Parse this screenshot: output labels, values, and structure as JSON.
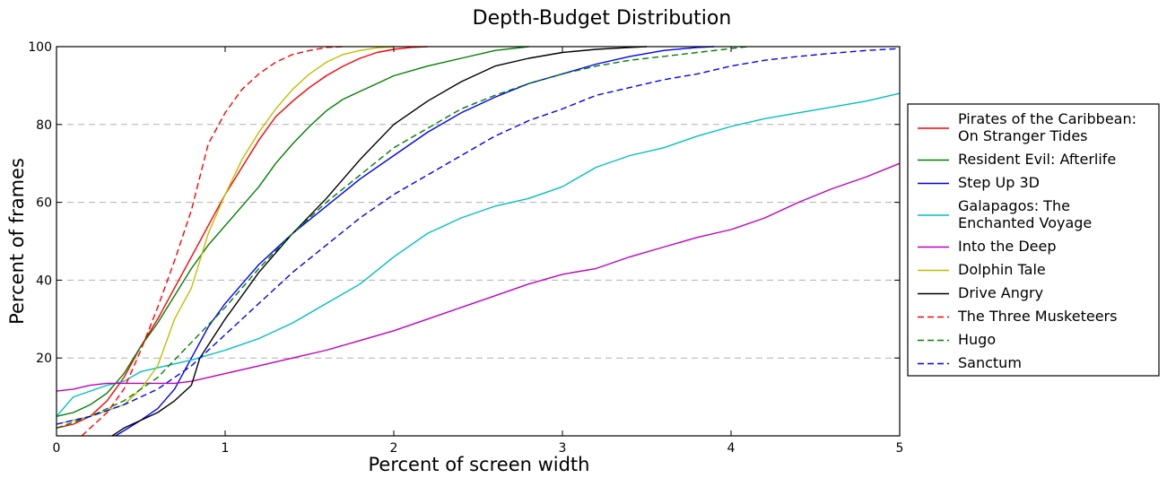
{
  "chart_data": {
    "type": "line",
    "title": "Depth-Budget Distribution",
    "xlabel": "Percent of screen width",
    "ylabel": "Percent of frames",
    "xlim": [
      0,
      5
    ],
    "ylim": [
      0,
      100
    ],
    "xticks": [
      {
        "v": 0,
        "label": "0"
      },
      {
        "v": 1,
        "label": "1"
      },
      {
        "v": 2,
        "label": "2"
      },
      {
        "v": 3,
        "label": "3"
      },
      {
        "v": 4,
        "label": "4"
      },
      {
        "v": 5,
        "label": "5"
      }
    ],
    "yticks": [
      {
        "v": 20,
        "label": "20"
      },
      {
        "v": 40,
        "label": "40"
      },
      {
        "v": 60,
        "label": "60"
      },
      {
        "v": 80,
        "label": "80"
      },
      {
        "v": 100,
        "label": "100"
      }
    ],
    "grid": "horizontal dashed",
    "legend_position": "right, outside plot",
    "series": [
      {
        "name": "Pirates of the Caribbean: On Stranger Tides",
        "legend_lines": [
          "Pirates of the Caribbean:",
          "On Stranger Tides"
        ],
        "color": "#ff0000",
        "dash": "solid",
        "x": [
          0,
          0.1,
          0.2,
          0.3,
          0.4,
          0.5,
          0.6,
          0.7,
          0.8,
          0.9,
          1.0,
          1.1,
          1.2,
          1.3,
          1.4,
          1.5,
          1.6,
          1.7,
          1.8,
          1.9,
          2.0,
          2.1,
          2.2
        ],
        "y": [
          2,
          3,
          5,
          9,
          15,
          23,
          30,
          38,
          46,
          54,
          62,
          69,
          76,
          82,
          86,
          89.5,
          92.5,
          95,
          97,
          98.5,
          99.3,
          99.8,
          100
        ]
      },
      {
        "name": "Resident Evil: Afterlife",
        "legend_lines": [
          "Resident Evil: Afterlife"
        ],
        "color": "#008000",
        "dash": "solid",
        "x": [
          0,
          0.1,
          0.2,
          0.3,
          0.4,
          0.5,
          0.6,
          0.7,
          0.8,
          0.9,
          1.0,
          1.1,
          1.2,
          1.3,
          1.4,
          1.5,
          1.6,
          1.7,
          1.8,
          1.9,
          2.0,
          2.2,
          2.4,
          2.6,
          2.8
        ],
        "y": [
          5,
          6,
          8,
          11,
          16,
          23,
          29,
          36,
          43,
          49,
          54,
          59,
          64,
          70,
          75,
          79.5,
          83.5,
          86.5,
          88.5,
          90.5,
          92.5,
          95,
          97,
          99,
          100
        ]
      },
      {
        "name": "Step Up 3D",
        "legend_lines": [
          "Step Up 3D"
        ],
        "color": "#0000ff",
        "dash": "solid",
        "x": [
          0.35,
          0.5,
          0.6,
          0.7,
          0.8,
          0.9,
          1.0,
          1.1,
          1.2,
          1.3,
          1.4,
          1.6,
          1.8,
          2.0,
          2.2,
          2.4,
          2.6,
          2.8,
          3.0,
          3.2,
          3.4,
          3.6,
          3.8,
          3.9
        ],
        "y": [
          0,
          4,
          7,
          12,
          20,
          28,
          34,
          39,
          44,
          48,
          52,
          59,
          66,
          72,
          78,
          83,
          87,
          90.5,
          93,
          95.5,
          97.5,
          99,
          99.8,
          100
        ]
      },
      {
        "name": "Galapagos: The Enchanted Voyage",
        "legend_lines": [
          "Galapagos: The",
          "Enchanted Voyage"
        ],
        "color": "#00bfbf",
        "dash": "solid",
        "x": [
          0,
          0.1,
          0.2,
          0.3,
          0.4,
          0.5,
          0.6,
          0.8,
          1.0,
          1.2,
          1.4,
          1.6,
          1.8,
          2.0,
          2.2,
          2.4,
          2.6,
          2.8,
          3.0,
          3.2,
          3.4,
          3.6,
          3.8,
          4.0,
          4.2,
          4.4,
          4.6,
          4.8,
          5.0
        ],
        "y": [
          5,
          10,
          11.5,
          13,
          14,
          16.5,
          17.5,
          19.5,
          22,
          25,
          29,
          34,
          39,
          46,
          52,
          56,
          59,
          61,
          64,
          69,
          72,
          74,
          77,
          79.5,
          81.5,
          83,
          84.5,
          86,
          88
        ]
      },
      {
        "name": "Into the Deep",
        "legend_lines": [
          "Into the Deep"
        ],
        "color": "#bf00bf",
        "dash": "solid",
        "x": [
          0,
          0.1,
          0.2,
          0.3,
          0.5,
          0.7,
          0.8,
          1.0,
          1.2,
          1.4,
          1.6,
          1.8,
          2.0,
          2.2,
          2.4,
          2.6,
          2.8,
          3.0,
          3.2,
          3.4,
          3.6,
          3.8,
          4.0,
          4.2,
          4.4,
          4.6,
          4.8,
          5.0
        ],
        "y": [
          11.5,
          12,
          13,
          13.5,
          13.5,
          13.5,
          14,
          16,
          18,
          20,
          22,
          24.5,
          27,
          30,
          33,
          36,
          39,
          41.5,
          43,
          46,
          48.5,
          51,
          53,
          56,
          60,
          63.5,
          66.5,
          70
        ]
      },
      {
        "name": "Dolphin Tale",
        "legend_lines": [
          "Dolphin Tale"
        ],
        "color": "#bfbf00",
        "dash": "solid",
        "x": [
          0,
          0.2,
          0.4,
          0.5,
          0.6,
          0.7,
          0.8,
          0.9,
          1.0,
          1.1,
          1.2,
          1.3,
          1.4,
          1.5,
          1.6,
          1.7,
          1.8,
          1.9,
          2.0
        ],
        "y": [
          3,
          5,
          8,
          12,
          18,
          30,
          38,
          52,
          62,
          71,
          78,
          84,
          89,
          93,
          96,
          98,
          99,
          99.7,
          100
        ]
      },
      {
        "name": "Drive Angry",
        "legend_lines": [
          "Drive Angry"
        ],
        "color": "#000000",
        "dash": "solid",
        "x": [
          0.33,
          0.4,
          0.5,
          0.6,
          0.7,
          0.8,
          0.85,
          1.0,
          1.2,
          1.4,
          1.6,
          1.8,
          2.0,
          2.2,
          2.4,
          2.6,
          2.8,
          3.0,
          3.2,
          3.4,
          3.5
        ],
        "y": [
          0,
          2,
          4,
          6,
          9,
          13,
          20,
          30,
          42,
          52,
          61,
          71,
          80,
          86,
          91,
          95,
          97,
          98.5,
          99.3,
          99.8,
          100
        ]
      },
      {
        "name": "The Three Musketeers",
        "legend_lines": [
          "The Three Musketeers"
        ],
        "color": "#ff0000",
        "dash": "dashed",
        "x": [
          0.15,
          0.3,
          0.4,
          0.5,
          0.6,
          0.7,
          0.8,
          0.9,
          1.0,
          1.1,
          1.2,
          1.3,
          1.4,
          1.5,
          1.6,
          1.7
        ],
        "y": [
          0,
          6,
          12,
          22,
          33,
          45,
          58,
          75,
          83,
          89,
          93,
          96,
          98,
          99,
          99.8,
          100
        ]
      },
      {
        "name": "Hugo",
        "legend_lines": [
          "Hugo"
        ],
        "color": "#008000",
        "dash": "dashed",
        "x": [
          0,
          0.2,
          0.4,
          0.6,
          0.8,
          1.0,
          1.2,
          1.4,
          1.6,
          1.8,
          2.0,
          2.2,
          2.4,
          2.6,
          2.8,
          3.0,
          3.2,
          3.4,
          3.6,
          3.8,
          4.0,
          4.1
        ],
        "y": [
          2,
          5,
          9,
          15,
          24,
          33,
          43,
          52,
          60,
          67,
          74,
          79,
          84,
          87.5,
          90.5,
          93,
          95,
          96.5,
          97.5,
          98.5,
          99.5,
          100
        ]
      },
      {
        "name": "Sanctum",
        "legend_lines": [
          "Sanctum"
        ],
        "color": "#0000ff",
        "dash": "dashed",
        "x": [
          0,
          0.2,
          0.4,
          0.6,
          0.8,
          1.0,
          1.2,
          1.4,
          1.6,
          1.8,
          2.0,
          2.2,
          2.4,
          2.6,
          2.8,
          3.0,
          3.2,
          3.4,
          3.6,
          3.8,
          4.0,
          4.2,
          4.4,
          4.6,
          4.8,
          5.0
        ],
        "y": [
          3,
          5,
          8,
          12,
          18,
          26,
          34,
          42,
          49,
          56,
          62,
          67,
          72,
          77,
          81,
          84,
          87.5,
          89.5,
          91.5,
          93,
          95,
          96.5,
          97.5,
          98.3,
          99,
          99.5
        ]
      }
    ]
  }
}
